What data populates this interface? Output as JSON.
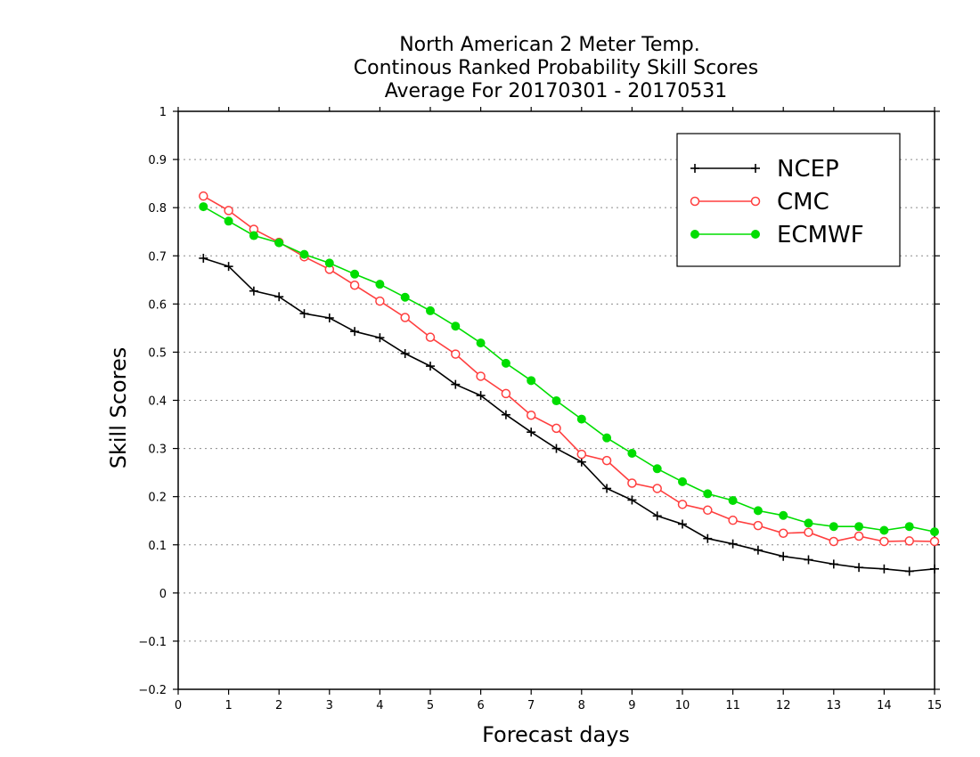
{
  "chart_data": {
    "type": "line",
    "title_lines": [
      "North American 2 Meter Temp.",
      "Continous Ranked Probability Skill Scores",
      "Average For 20170301 - 20170531"
    ],
    "xlabel": "Forecast days",
    "ylabel": "Skill Scores",
    "xlim": [
      0,
      15
    ],
    "ylim": [
      -0.2,
      1
    ],
    "xticks": [
      "0",
      "1",
      "2",
      "3",
      "4",
      "5",
      "6",
      "7",
      "8",
      "9",
      "10",
      "11",
      "12",
      "13",
      "14",
      "15"
    ],
    "yticks": [
      "−0.2",
      "−0.1",
      "0",
      "0.1",
      "0.2",
      "0.3",
      "0.4",
      "0.5",
      "0.6",
      "0.7",
      "0.8",
      "0.9",
      "1"
    ],
    "grid": "horizontal dotted",
    "legend_position": "top-right",
    "x": [
      0.5,
      1,
      1.5,
      2,
      2.5,
      3,
      3.5,
      4,
      4.5,
      5,
      5.5,
      6,
      6.5,
      7,
      7.5,
      8,
      8.5,
      9,
      9.5,
      10,
      10.5,
      11,
      11.5,
      12,
      12.5,
      13,
      13.5,
      14,
      14.5,
      15
    ],
    "series": [
      {
        "name": "NCEP",
        "color": "#000000",
        "marker": "plus",
        "values": [
          0.695,
          0.678,
          0.627,
          0.615,
          0.58,
          0.571,
          0.543,
          0.53,
          0.497,
          0.471,
          0.433,
          0.41,
          0.37,
          0.334,
          0.3,
          0.272,
          0.217,
          0.193,
          0.16,
          0.143,
          0.113,
          0.102,
          0.089,
          0.076,
          0.069,
          0.06,
          0.053,
          0.05,
          0.045,
          0.05
        ]
      },
      {
        "name": "CMC",
        "color": "#ff3f3f",
        "marker": "open-circle",
        "values": [
          0.824,
          0.794,
          0.755,
          0.728,
          0.698,
          0.672,
          0.639,
          0.606,
          0.572,
          0.531,
          0.496,
          0.45,
          0.414,
          0.369,
          0.342,
          0.288,
          0.275,
          0.228,
          0.217,
          0.184,
          0.172,
          0.151,
          0.14,
          0.124,
          0.126,
          0.107,
          0.118,
          0.107,
          0.108,
          0.107
        ]
      },
      {
        "name": "ECMWF",
        "color": "#00dd00",
        "marker": "filled-circle",
        "values": [
          0.802,
          0.772,
          0.742,
          0.727,
          0.703,
          0.685,
          0.662,
          0.641,
          0.614,
          0.586,
          0.554,
          0.519,
          0.477,
          0.441,
          0.399,
          0.361,
          0.322,
          0.29,
          0.258,
          0.231,
          0.206,
          0.192,
          0.171,
          0.161,
          0.145,
          0.138,
          0.138,
          0.13,
          0.138,
          0.127
        ]
      }
    ]
  }
}
